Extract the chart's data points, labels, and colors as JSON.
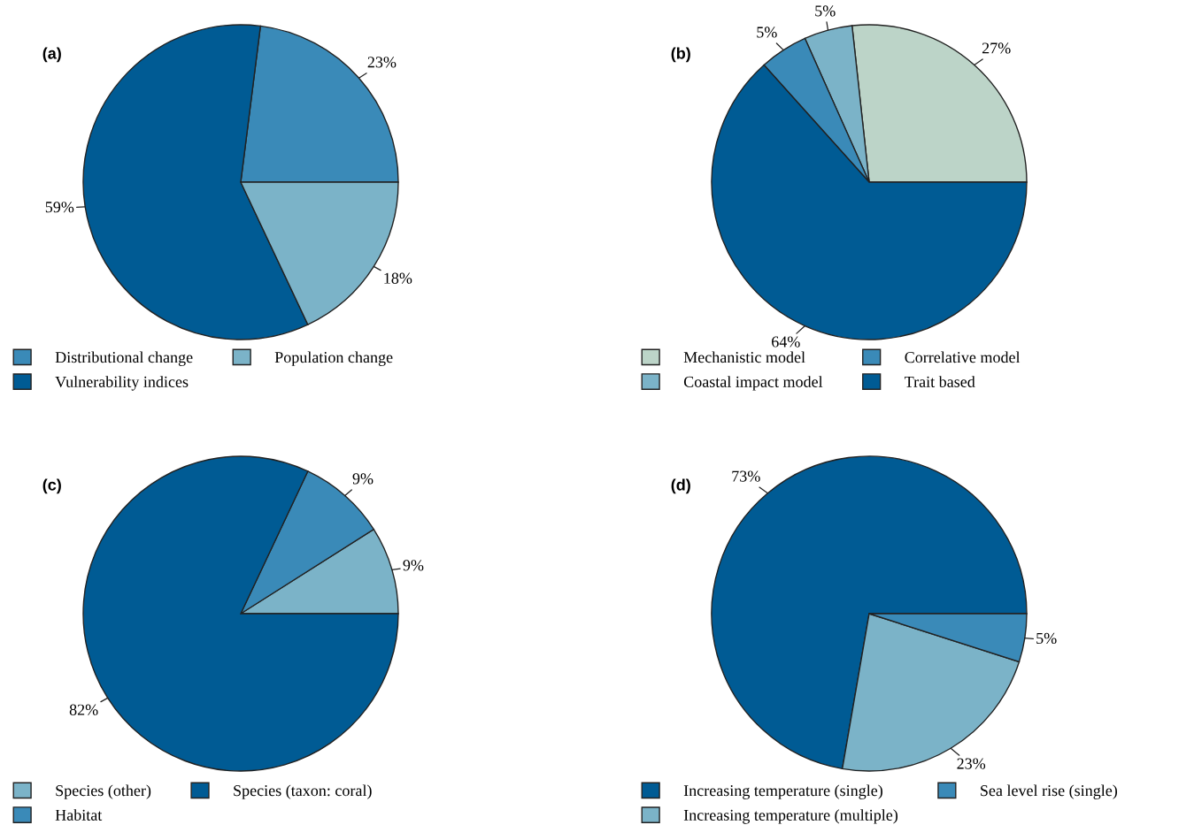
{
  "chart_data": [
    {
      "type": "pie",
      "title": "(a)",
      "legend": "bottom",
      "categories": [
        "Distributional change",
        "Vulnerability indices",
        "Population change"
      ],
      "values": [
        23,
        59,
        18
      ],
      "colors": [
        "#3a8ab8",
        "#005b94",
        "#7bb3c8"
      ],
      "value_labels": [
        "23%",
        "59%",
        "18%"
      ]
    },
    {
      "type": "pie",
      "title": "(b)",
      "legend": "bottom",
      "categories": [
        "Mechanistic model",
        "Coastal impact model",
        "Correlative model",
        "Trait based"
      ],
      "values": [
        27,
        5,
        5,
        64
      ],
      "colors": [
        "#bcd4c8",
        "#7bb3c8",
        "#3a8ab8",
        "#005b94"
      ],
      "value_labels": [
        "27%",
        "5%",
        "5%",
        "64%"
      ]
    },
    {
      "type": "pie",
      "title": "(c)",
      "legend": "bottom",
      "categories": [
        "Species (other)",
        "Habitat",
        "Species (taxon: coral)"
      ],
      "values": [
        9,
        9,
        82
      ],
      "colors": [
        "#7bb3c8",
        "#3a8ab8",
        "#005b94"
      ],
      "value_labels": [
        "9%",
        "9%",
        "82%"
      ]
    },
    {
      "type": "pie",
      "title": "(d)",
      "legend": "bottom",
      "categories": [
        "Increasing temperature (single)",
        "Increasing temperature (multiple)",
        "Sea level rise (single)"
      ],
      "values": [
        73,
        23,
        5
      ],
      "colors": [
        "#005b94",
        "#7bb3c8",
        "#3a8ab8"
      ],
      "value_labels": [
        "73%",
        "23%",
        "5%"
      ]
    }
  ]
}
